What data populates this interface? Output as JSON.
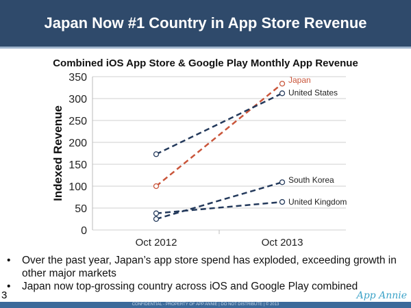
{
  "slide_title": "Japan Now #1 Country in App Store Revenue",
  "chart_data": {
    "type": "line",
    "title": "Combined iOS App Store & Google Play Monthly App Revenue",
    "xlabel": "",
    "ylabel": "Indexed Revenue",
    "categories": [
      "Oct 2012",
      "Oct 2013"
    ],
    "ylim": [
      0,
      350
    ],
    "yticks": [
      0,
      50,
      100,
      150,
      200,
      250,
      300,
      350
    ],
    "grid": true,
    "series": [
      {
        "name": "Japan",
        "values": [
          100,
          334
        ],
        "color": "#c9553a"
      },
      {
        "name": "United States",
        "values": [
          173,
          312
        ],
        "color": "#23395b"
      },
      {
        "name": "South Korea",
        "values": [
          25,
          109
        ],
        "color": "#23395b"
      },
      {
        "name": "United Kingdom",
        "values": [
          38,
          64
        ],
        "color": "#23395b"
      }
    ]
  },
  "bullets": [
    "Over the past year, Japan’s app store spend has exploded, exceeding growth in other major markets",
    "Japan now top-grossing country across iOS and Google Play combined"
  ],
  "page_number": "3",
  "logo_text": "App Annie",
  "footer": "CONFIDENTIAL - PROPERTY OF APP ANNIE  |  DO NOT DISTRIBUTE  |  © 2013"
}
